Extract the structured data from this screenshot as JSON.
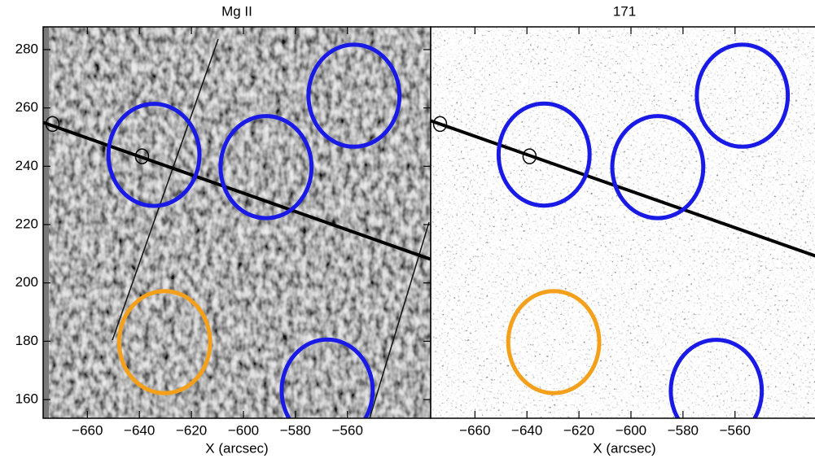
{
  "chart_data": [
    {
      "type": "image",
      "title": "Mg II",
      "x_label": "X (arcsec)",
      "background": "gray",
      "xlim": [
        -677,
        -528
      ],
      "ylim": [
        153.6,
        287.8
      ],
      "xticks": [
        {
          "value": -660,
          "label": "−660"
        },
        {
          "value": -640,
          "label": "−640"
        },
        {
          "value": -620,
          "label": "−620"
        },
        {
          "value": -600,
          "label": "−600"
        },
        {
          "value": -580,
          "label": "−580"
        },
        {
          "value": -560,
          "label": "−560"
        }
      ],
      "yticks": [
        160,
        180,
        200,
        220,
        240,
        260,
        280
      ],
      "circles": [
        {
          "x": -634.4,
          "y": 243.9,
          "r": 17.5,
          "color": "#1a1ae6"
        },
        {
          "x": -591.3,
          "y": 239.7,
          "r": 17.5,
          "color": "#1a1ae6"
        },
        {
          "x": -557.5,
          "y": 264.2,
          "r": 17.5,
          "color": "#1a1ae6"
        },
        {
          "x": -567.8,
          "y": 163.1,
          "r": 17.5,
          "color": "#1a1ae6"
        },
        {
          "x": -630.3,
          "y": 179.7,
          "r": 17.5,
          "color": "#f5a01a"
        },
        {
          "x": -673.4,
          "y": 254.5,
          "r": 2.5,
          "color": "#000000"
        },
        {
          "x": -639.0,
          "y": 243.4,
          "r": 2.5,
          "color": "#000000"
        }
      ],
      "line": {
        "x": [
          -677,
          -528
        ],
        "y": [
          255.0,
          208.1
        ]
      }
    },
    {
      "type": "image",
      "title": "171",
      "x_label": "X (arcsec)",
      "background": "white",
      "xlim": [
        -677,
        -528
      ],
      "ylim": [
        153.6,
        287.8
      ],
      "xticks": [
        {
          "value": -660,
          "label": "−660"
        },
        {
          "value": -640,
          "label": "−640"
        },
        {
          "value": -620,
          "label": "−620"
        },
        {
          "value": -600,
          "label": "−600"
        },
        {
          "value": -580,
          "label": "−580"
        },
        {
          "value": -560,
          "label": "−560"
        }
      ],
      "circles": [
        {
          "x": -633.4,
          "y": 244.0,
          "r": 17.5,
          "color": "#1a1ae6"
        },
        {
          "x": -589.7,
          "y": 239.7,
          "r": 17.5,
          "color": "#1a1ae6"
        },
        {
          "x": -557.2,
          "y": 264.2,
          "r": 17.5,
          "color": "#1a1ae6"
        },
        {
          "x": -567.2,
          "y": 163.0,
          "r": 17.5,
          "color": "#1a1ae6"
        },
        {
          "x": -629.7,
          "y": 179.7,
          "r": 17.5,
          "color": "#f5a01a"
        },
        {
          "x": -673.4,
          "y": 254.5,
          "r": 2.5,
          "color": "#000000"
        },
        {
          "x": -639.0,
          "y": 243.4,
          "r": 2.5,
          "color": "#000000"
        }
      ],
      "line": {
        "x": [
          -677,
          -528
        ],
        "y": [
          255.6,
          208.9
        ]
      }
    }
  ]
}
